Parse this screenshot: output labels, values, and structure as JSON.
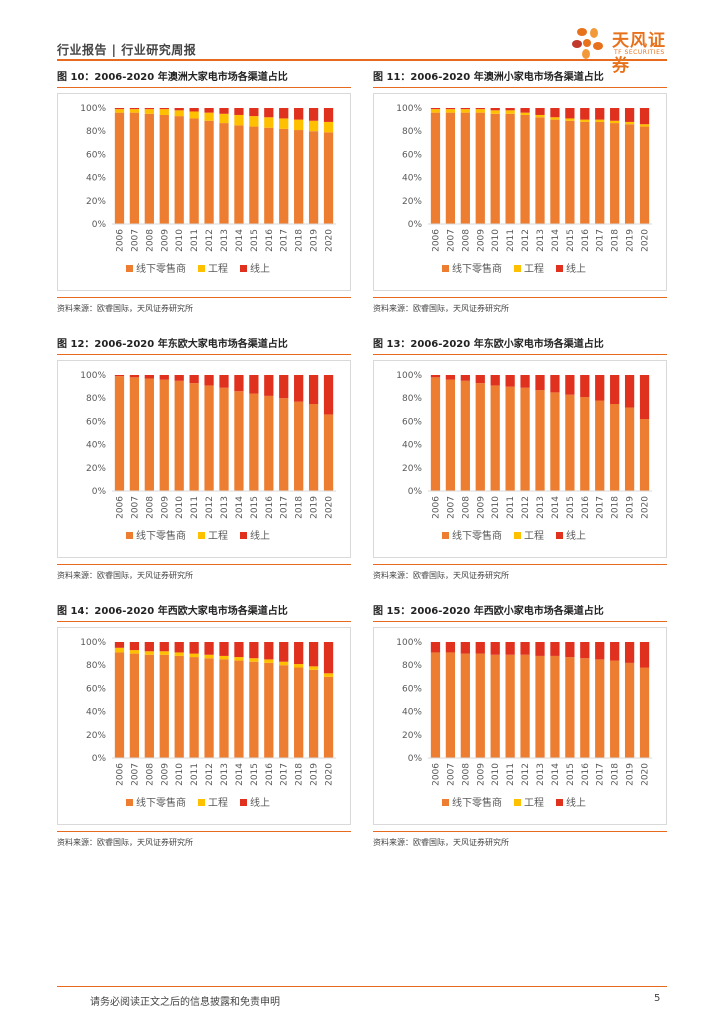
{
  "header": {
    "text": "行业报告 | 行业研究周报",
    "logo_text": "天风证券",
    "logo_sub": "TF SECURITIES"
  },
  "colors": {
    "accent": "#e86a1e",
    "offline": "#ED7D31",
    "project": "#FFC000",
    "online": "#E0301E"
  },
  "source_text": "资料来源：欧睿国际，天风证券研究所",
  "footer": {
    "disclaimer": "请务必阅读正文之后的信息披露和免责申明",
    "page": "5"
  },
  "chart_data": [
    {
      "type": "bar",
      "stacked": true,
      "title": "图 10：2006-2020 年澳洲大家电市场各渠道占比",
      "categories": [
        "2006",
        "2007",
        "2008",
        "2009",
        "2010",
        "2011",
        "2012",
        "2013",
        "2014",
        "2015",
        "2016",
        "2017",
        "2018",
        "2019",
        "2020"
      ],
      "series": [
        {
          "name": "线下零售商",
          "color": "#ED7D31",
          "values": [
            96,
            96,
            95,
            94,
            93,
            91,
            89,
            87,
            85,
            84,
            83,
            82,
            81,
            80,
            79
          ]
        },
        {
          "name": "工程",
          "color": "#FFC000",
          "values": [
            3,
            3,
            4,
            5,
            5,
            6,
            7,
            8,
            9,
            9,
            9,
            9,
            9,
            9,
            9
          ]
        },
        {
          "name": "线上",
          "color": "#E0301E",
          "values": [
            1,
            1,
            1,
            1,
            2,
            3,
            4,
            5,
            6,
            7,
            8,
            9,
            10,
            11,
            12
          ]
        }
      ],
      "yticks": [
        "0%",
        "20%",
        "40%",
        "60%",
        "80%",
        "100%"
      ],
      "ylim": [
        0,
        100
      ]
    },
    {
      "type": "bar",
      "stacked": true,
      "title": "图 11：2006-2020 年澳洲小家电市场各渠道占比",
      "categories": [
        "2006",
        "2007",
        "2008",
        "2009",
        "2010",
        "2011",
        "2012",
        "2013",
        "2014",
        "2015",
        "2016",
        "2017",
        "2018",
        "2019",
        "2020"
      ],
      "series": [
        {
          "name": "线下零售商",
          "color": "#ED7D31",
          "values": [
            96,
            96,
            96,
            96,
            95,
            95,
            94,
            92,
            90,
            89,
            88,
            88,
            87,
            86,
            84
          ]
        },
        {
          "name": "工程",
          "color": "#FFC000",
          "values": [
            3,
            3,
            3,
            3,
            3,
            3,
            2,
            2,
            2,
            2,
            2,
            2,
            2,
            2,
            2
          ]
        },
        {
          "name": "线上",
          "color": "#E0301E",
          "values": [
            1,
            1,
            1,
            1,
            2,
            2,
            4,
            6,
            8,
            9,
            10,
            10,
            11,
            12,
            14
          ]
        }
      ],
      "yticks": [
        "0%",
        "20%",
        "40%",
        "60%",
        "80%",
        "100%"
      ],
      "ylim": [
        0,
        100
      ]
    },
    {
      "type": "bar",
      "stacked": true,
      "title": "图 12：2006-2020 年东欧大家电市场各渠道占比",
      "categories": [
        "2006",
        "2007",
        "2008",
        "2009",
        "2010",
        "2011",
        "2012",
        "2013",
        "2014",
        "2015",
        "2016",
        "2017",
        "2018",
        "2019",
        "2020"
      ],
      "series": [
        {
          "name": "线下零售商",
          "color": "#ED7D31",
          "values": [
            99,
            98,
            97,
            96,
            95,
            93,
            91,
            89,
            86,
            84,
            82,
            80,
            77,
            75,
            66
          ]
        },
        {
          "name": "工程",
          "color": "#FFC000",
          "values": [
            0,
            0,
            0,
            0,
            0,
            0,
            0,
            0,
            0,
            0,
            0,
            0,
            0,
            0,
            0
          ]
        },
        {
          "name": "线上",
          "color": "#E0301E",
          "values": [
            1,
            2,
            3,
            4,
            5,
            7,
            9,
            11,
            14,
            16,
            18,
            20,
            23,
            25,
            34
          ]
        }
      ],
      "yticks": [
        "0%",
        "20%",
        "40%",
        "60%",
        "80%",
        "100%"
      ],
      "ylim": [
        0,
        100
      ]
    },
    {
      "type": "bar",
      "stacked": true,
      "title": "图 13：2006-2020 年东欧小家电市场各渠道占比",
      "categories": [
        "2006",
        "2007",
        "2008",
        "2009",
        "2010",
        "2011",
        "2012",
        "2013",
        "2014",
        "2015",
        "2016",
        "2017",
        "2018",
        "2019",
        "2020"
      ],
      "series": [
        {
          "name": "线下零售商",
          "color": "#ED7D31",
          "values": [
            98,
            96,
            95,
            93,
            91,
            90,
            89,
            87,
            85,
            83,
            81,
            78,
            75,
            72,
            62
          ]
        },
        {
          "name": "工程",
          "color": "#FFC000",
          "values": [
            0,
            0,
            0,
            0,
            0,
            0,
            0,
            0,
            0,
            0,
            0,
            0,
            0,
            0,
            0
          ]
        },
        {
          "name": "线上",
          "color": "#E0301E",
          "values": [
            2,
            4,
            5,
            7,
            9,
            10,
            11,
            13,
            15,
            17,
            19,
            22,
            25,
            28,
            38
          ]
        }
      ],
      "yticks": [
        "0%",
        "20%",
        "40%",
        "60%",
        "80%",
        "100%"
      ],
      "ylim": [
        0,
        100
      ]
    },
    {
      "type": "bar",
      "stacked": true,
      "title": "图 14：2006-2020 年西欧大家电市场各渠道占比",
      "categories": [
        "2006",
        "2007",
        "2008",
        "2009",
        "2010",
        "2011",
        "2012",
        "2013",
        "2014",
        "2015",
        "2016",
        "2017",
        "2018",
        "2019",
        "2020"
      ],
      "series": [
        {
          "name": "线下零售商",
          "color": "#ED7D31",
          "values": [
            91,
            90,
            89,
            89,
            88,
            87,
            86,
            85,
            84,
            83,
            82,
            80,
            78,
            76,
            70
          ]
        },
        {
          "name": "工程",
          "color": "#FFC000",
          "values": [
            4,
            3,
            3,
            3,
            3,
            3,
            3,
            3,
            3,
            3,
            3,
            3,
            3,
            3,
            3
          ]
        },
        {
          "name": "线上",
          "color": "#E0301E",
          "values": [
            5,
            7,
            8,
            8,
            9,
            10,
            11,
            12,
            13,
            14,
            15,
            17,
            19,
            21,
            27
          ]
        }
      ],
      "yticks": [
        "0%",
        "20%",
        "40%",
        "60%",
        "80%",
        "100%"
      ],
      "ylim": [
        0,
        100
      ]
    },
    {
      "type": "bar",
      "stacked": true,
      "title": "图 15：2006-2020 年西欧小家电市场各渠道占比",
      "categories": [
        "2006",
        "2007",
        "2008",
        "2009",
        "2010",
        "2011",
        "2012",
        "2013",
        "2014",
        "2015",
        "2016",
        "2017",
        "2018",
        "2019",
        "2020"
      ],
      "series": [
        {
          "name": "线下零售商",
          "color": "#ED7D31",
          "values": [
            91,
            91,
            90,
            90,
            89,
            89,
            89,
            88,
            88,
            87,
            86,
            85,
            84,
            82,
            78
          ]
        },
        {
          "name": "工程",
          "color": "#FFC000",
          "values": [
            0,
            0,
            0,
            0,
            0,
            0,
            0,
            0,
            0,
            0,
            0,
            0,
            0,
            0,
            0
          ]
        },
        {
          "name": "线上",
          "color": "#E0301E",
          "values": [
            9,
            9,
            10,
            10,
            11,
            11,
            11,
            12,
            12,
            13,
            14,
            15,
            16,
            18,
            22
          ]
        }
      ],
      "yticks": [
        "0%",
        "20%",
        "40%",
        "60%",
        "80%",
        "100%"
      ],
      "ylim": [
        0,
        100
      ]
    }
  ]
}
